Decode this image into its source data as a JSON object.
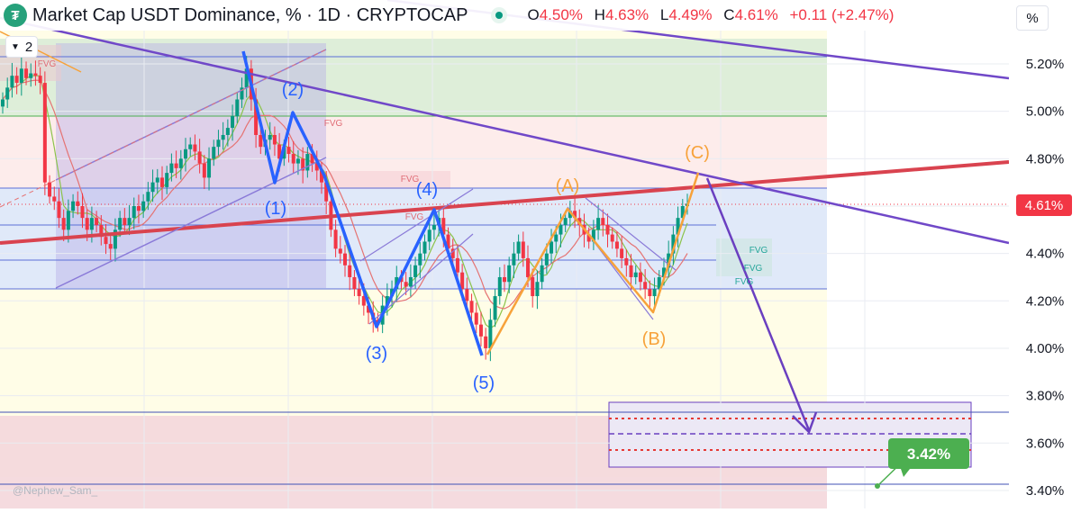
{
  "header": {
    "title": "Market Cap USDT Dominance, % · 1D · CRYPTOCAP",
    "ohlc": {
      "o_label": "O",
      "o": "4.50%",
      "h_label": "H",
      "h": "4.63%",
      "l_label": "L",
      "l": "4.49%",
      "c_label": "C",
      "c": "4.61%",
      "change": "+0.11 (+2.47%)"
    },
    "layers_count": "2",
    "unit": "%"
  },
  "watermark": "@Nephew_Sam_",
  "colors": {
    "up": "#089981",
    "down": "#f23645",
    "blue_wave": "#2962ff",
    "orange_wave": "#f7a23a",
    "purple": "#6a3fc0",
    "red_line": "#d9434f",
    "price_badge": "#f23645",
    "target_badge": "#4caf50"
  },
  "chart_data": {
    "type": "candlestick",
    "title": "Market Cap USDT Dominance, % · 1D · CRYPTOCAP",
    "y_axis": {
      "unit": "%",
      "ylim": [
        3.38,
        5.31
      ],
      "ticks": [
        "5.20%",
        "5.00%",
        "4.80%",
        "4.60%",
        "4.40%",
        "4.20%",
        "4.00%",
        "3.80%",
        "3.60%",
        "3.40%"
      ],
      "tick_values": [
        5.2,
        5.0,
        4.8,
        4.6,
        4.4,
        4.2,
        4.0,
        3.8,
        3.6,
        3.4
      ]
    },
    "last_price": {
      "value": 4.61,
      "label": "4.61%"
    },
    "target": {
      "value": 3.42,
      "label": "3.42%"
    },
    "ohlc_last": {
      "open": 4.5,
      "high": 4.63,
      "low": 4.49,
      "close": 4.61
    },
    "closes": [
      5.05,
      5.1,
      5.15,
      5.12,
      5.18,
      5.14,
      5.16,
      5.15,
      5.12,
      4.7,
      4.64,
      4.62,
      4.55,
      4.5,
      4.58,
      4.62,
      4.6,
      4.55,
      4.5,
      4.55,
      4.52,
      4.47,
      4.44,
      4.42,
      4.5,
      4.55,
      4.52,
      4.55,
      4.6,
      4.58,
      4.62,
      4.66,
      4.7,
      4.72,
      4.68,
      4.74,
      4.78,
      4.76,
      4.8,
      4.84,
      4.86,
      4.83,
      4.78,
      4.72,
      4.8,
      4.85,
      4.88,
      4.9,
      4.93,
      4.98,
      5.05,
      5.1,
      5.18,
      5.05,
      4.9,
      4.85,
      4.88,
      4.9,
      4.86,
      4.8,
      4.85,
      4.82,
      4.78,
      4.8,
      4.75,
      4.82,
      4.78,
      4.75,
      4.7,
      4.62,
      4.5,
      4.42,
      4.4,
      4.35,
      4.3,
      4.25,
      4.22,
      4.18,
      4.15,
      4.12,
      4.1,
      4.18,
      4.22,
      4.25,
      4.3,
      4.28,
      4.26,
      4.3,
      4.35,
      4.4,
      4.45,
      4.5,
      4.52,
      4.55,
      4.48,
      4.42,
      4.38,
      4.32,
      4.25,
      4.2,
      4.15,
      4.1,
      4.05,
      4.0,
      4.12,
      4.22,
      4.3,
      4.28,
      4.35,
      4.4,
      4.45,
      4.38,
      4.3,
      4.22,
      4.28,
      4.35,
      4.4,
      4.45,
      4.48,
      4.52,
      4.55,
      4.58,
      4.55,
      4.52,
      4.48,
      4.45,
      4.5,
      4.55,
      4.52,
      4.48,
      4.45,
      4.42,
      4.38,
      4.35,
      4.3,
      4.32,
      4.28,
      4.25,
      4.22,
      4.25,
      4.3,
      4.34,
      4.4,
      4.48,
      4.55,
      4.6,
      4.61
    ],
    "annotations": {
      "blue_wave_labels": [
        "(1)",
        "(2)",
        "(3)",
        "(4)",
        "(5)"
      ],
      "orange_wave_labels": [
        "(A)",
        "(B)",
        "(C)"
      ],
      "fvg_labels": [
        "FVG",
        "FVG",
        "FVG",
        "FVG",
        "FVG",
        "FVG",
        "FVG"
      ]
    }
  }
}
